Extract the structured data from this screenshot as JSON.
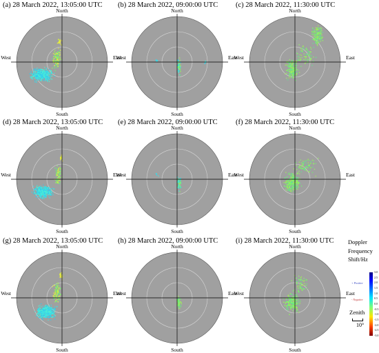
{
  "panels": [
    {
      "id": "a",
      "label": "(a)",
      "title": "28 March 2022, 13:05:00 UTC"
    },
    {
      "id": "b",
      "label": "(b)",
      "title": "28 March 2022, 09:00:00 UTC"
    },
    {
      "id": "c",
      "label": "(c)",
      "title": "28 March 2022, 11:30:00 UTC"
    },
    {
      "id": "d",
      "label": "(d)",
      "title": "28 March 2022, 13:05:00 UTC"
    },
    {
      "id": "e",
      "label": "(e)",
      "title": "28 March 2022, 09:00:00 UTC"
    },
    {
      "id": "f",
      "label": "(f)",
      "title": "28 March 2022, 11:30:00 UTC"
    },
    {
      "id": "g",
      "label": "(g)",
      "title": "28 March 2022, 13:05:00 UTC"
    },
    {
      "id": "h",
      "label": "(h)",
      "title": "28 March 2022, 09:00:00 UTC"
    },
    {
      "id": "i",
      "label": "(i)",
      "title": "28 March 2022, 11:30:00 UTC"
    }
  ],
  "directions": {
    "north": "North",
    "south": "South",
    "east": "East",
    "west": "West"
  },
  "legend": {
    "title_lines": [
      "Doppler",
      "Frequency",
      "Shift/Hz"
    ],
    "ticks": [
      "3.0",
      "2.5",
      "2.0",
      "1.5",
      "1.0",
      "0.5",
      "0.0",
      "-0.5",
      "-1.0",
      "-1.5",
      "-2.0",
      "-2.5",
      "-3.0"
    ],
    "positive_label": "+ Positive",
    "negative_label": "- Negative"
  },
  "zenith": {
    "label": "Zenith",
    "scale": "10°"
  },
  "colors": {
    "disk": "#a0a0a0",
    "grid": "#d6d6d6",
    "axis": "#000000"
  }
}
